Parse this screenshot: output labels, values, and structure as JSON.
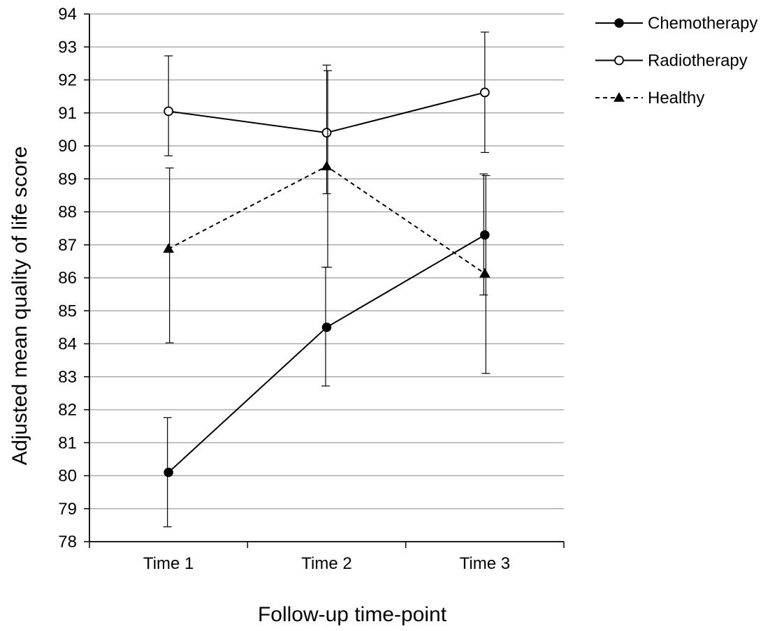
{
  "chart_data": {
    "type": "line",
    "title": "",
    "xlabel": "Follow-up time-point",
    "ylabel": "Adjusted mean quality of life score",
    "categories": [
      "Time 1",
      "Time 2",
      "Time 3"
    ],
    "ylim": [
      78,
      94
    ],
    "yticks": [
      78,
      79,
      80,
      81,
      82,
      83,
      84,
      85,
      86,
      87,
      88,
      89,
      90,
      91,
      92,
      93,
      94
    ],
    "grid": "horizontal",
    "legend_position": "top-right",
    "series": [
      {
        "name": "Chemotherapy",
        "values": [
          80.1,
          84.5,
          87.3
        ],
        "error_low": [
          78.45,
          82.72,
          85.48
        ],
        "error_high": [
          81.76,
          86.32,
          89.15
        ],
        "marker": "filled-circle",
        "line_style": "solid",
        "color": "#000000"
      },
      {
        "name": "Radiotherapy",
        "values": [
          91.05,
          90.4,
          91.62
        ],
        "error_low": [
          89.7,
          88.55,
          89.8
        ],
        "error_high": [
          92.73,
          92.45,
          93.45
        ],
        "marker": "open-circle",
        "line_style": "solid",
        "color": "#000000"
      },
      {
        "name": "Healthy",
        "values": [
          86.88,
          89.38,
          86.13
        ],
        "error_low": [
          84.03,
          86.32,
          83.1
        ],
        "error_high": [
          89.33,
          92.28,
          89.1
        ],
        "marker": "filled-triangle",
        "line_style": "dashed",
        "color": "#000000"
      }
    ]
  },
  "colors": {
    "gridline": "#9e9e9e",
    "axis": "#000000",
    "background": "#ffffff"
  }
}
